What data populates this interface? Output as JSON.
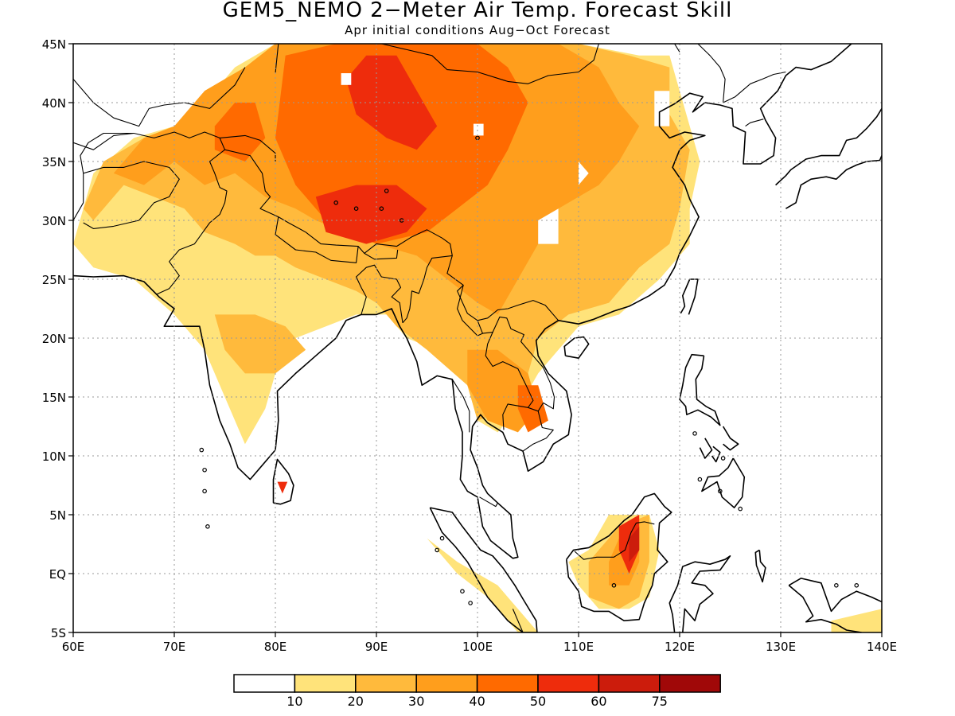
{
  "title": "GEM5_NEMO 2−Meter Air Temp. Forecast Skill",
  "subtitle": "Apr initial conditions  Aug−Oct Forecast",
  "map": {
    "lon_range": [
      60,
      140
    ],
    "lat_range": [
      -5,
      45
    ],
    "lon_ticks": [
      {
        "value": 60,
        "label": "60E"
      },
      {
        "value": 70,
        "label": "70E"
      },
      {
        "value": 80,
        "label": "80E"
      },
      {
        "value": 90,
        "label": "90E"
      },
      {
        "value": 100,
        "label": "100E"
      },
      {
        "value": 110,
        "label": "110E"
      },
      {
        "value": 120,
        "label": "120E"
      },
      {
        "value": 130,
        "label": "130E"
      },
      {
        "value": 140,
        "label": "140E"
      }
    ],
    "lat_ticks": [
      {
        "value": 45,
        "label": "45N"
      },
      {
        "value": 40,
        "label": "40N"
      },
      {
        "value": 35,
        "label": "35N"
      },
      {
        "value": 30,
        "label": "30N"
      },
      {
        "value": 25,
        "label": "25N"
      },
      {
        "value": 20,
        "label": "20N"
      },
      {
        "value": 15,
        "label": "15N"
      },
      {
        "value": 10,
        "label": "10N"
      },
      {
        "value": 5,
        "label": "5N"
      },
      {
        "value": 0,
        "label": "EQ"
      },
      {
        "value": -5,
        "label": "5S"
      }
    ],
    "grid": "dotted",
    "skill_regions": [
      {
        "level": 10,
        "points": [
          [
            60,
            28
          ],
          [
            62,
            34
          ],
          [
            66,
            37
          ],
          [
            70,
            38
          ],
          [
            73,
            40
          ],
          [
            76,
            43
          ],
          [
            80,
            45
          ],
          [
            98,
            45
          ],
          [
            110,
            45
          ],
          [
            116,
            44
          ],
          [
            119,
            44
          ],
          [
            120,
            41
          ],
          [
            121,
            38
          ],
          [
            122,
            35
          ],
          [
            121,
            31
          ],
          [
            121,
            28
          ],
          [
            118,
            25
          ],
          [
            114,
            22
          ],
          [
            110,
            21
          ],
          [
            108,
            19
          ],
          [
            106,
            17
          ],
          [
            104,
            14
          ],
          [
            102,
            12
          ],
          [
            100,
            13
          ],
          [
            99,
            16
          ],
          [
            96,
            19
          ],
          [
            93,
            20
          ],
          [
            91,
            22
          ],
          [
            88,
            22
          ],
          [
            85,
            21
          ],
          [
            82,
            20
          ],
          [
            80,
            17
          ],
          [
            79,
            14
          ],
          [
            77,
            11
          ],
          [
            75,
            15
          ],
          [
            73,
            19
          ],
          [
            70,
            22
          ],
          [
            66,
            25
          ],
          [
            62,
            26
          ]
        ]
      },
      {
        "level": 10,
        "points": [
          [
            113,
            5
          ],
          [
            117,
            5
          ],
          [
            118,
            2
          ],
          [
            117,
            -2
          ],
          [
            115,
            -3
          ],
          [
            112,
            -3
          ],
          [
            110,
            -1
          ],
          [
            109,
            1
          ],
          [
            111,
            2
          ]
        ]
      },
      {
        "level": 10,
        "points": [
          [
            95,
            3
          ],
          [
            98,
            1
          ],
          [
            102,
            -1
          ],
          [
            104,
            -3
          ],
          [
            106,
            -5
          ],
          [
            104,
            -5
          ],
          [
            101,
            -2
          ],
          [
            98,
            0
          ]
        ]
      },
      {
        "level": 10,
        "points": [
          [
            135,
            -4
          ],
          [
            140,
            -3
          ],
          [
            140,
            -5
          ],
          [
            135,
            -5
          ]
        ]
      },
      {
        "level": 20,
        "points": [
          [
            61,
            31
          ],
          [
            63,
            35
          ],
          [
            67,
            37
          ],
          [
            71,
            38
          ],
          [
            73,
            41
          ],
          [
            77,
            43
          ],
          [
            80,
            45
          ],
          [
            110,
            45
          ],
          [
            115,
            44
          ],
          [
            119,
            43
          ],
          [
            119,
            39
          ],
          [
            121,
            36
          ],
          [
            120,
            31
          ],
          [
            119,
            28
          ],
          [
            116,
            26
          ],
          [
            113,
            23
          ],
          [
            109,
            22
          ],
          [
            106,
            20
          ],
          [
            105,
            17
          ],
          [
            103,
            14
          ],
          [
            100,
            13
          ],
          [
            99,
            16
          ],
          [
            95,
            19
          ],
          [
            92,
            21
          ],
          [
            90,
            23
          ],
          [
            88,
            24
          ],
          [
            85,
            25
          ],
          [
            82,
            26
          ],
          [
            80,
            27
          ],
          [
            78,
            27
          ],
          [
            76,
            28
          ],
          [
            73,
            29
          ],
          [
            71,
            31
          ],
          [
            68,
            32
          ],
          [
            65,
            33
          ],
          [
            62,
            30
          ]
        ]
      },
      {
        "level": 20,
        "points": [
          [
            74,
            22
          ],
          [
            78,
            22
          ],
          [
            81,
            21
          ],
          [
            83,
            19
          ],
          [
            80,
            17
          ],
          [
            77,
            17
          ],
          [
            75,
            19
          ]
        ]
      },
      {
        "level": 20,
        "points": [
          [
            114,
            4
          ],
          [
            117,
            5
          ],
          [
            117,
            1
          ],
          [
            116,
            -2
          ],
          [
            114,
            -3
          ],
          [
            111,
            -2
          ],
          [
            111,
            1
          ]
        ]
      },
      {
        "level": 30,
        "points": [
          [
            64,
            34
          ],
          [
            67,
            37
          ],
          [
            70,
            38
          ],
          [
            73,
            41
          ],
          [
            77,
            43
          ],
          [
            80,
            45
          ],
          [
            108,
            45
          ],
          [
            112,
            43
          ],
          [
            114,
            40
          ],
          [
            116,
            38
          ],
          [
            114,
            35
          ],
          [
            112,
            33
          ],
          [
            108,
            31
          ],
          [
            106,
            28
          ],
          [
            104,
            25
          ],
          [
            102,
            22
          ],
          [
            100,
            23
          ],
          [
            97,
            25
          ],
          [
            94,
            27
          ],
          [
            90,
            28
          ],
          [
            87,
            29
          ],
          [
            84,
            30
          ],
          [
            82,
            31
          ],
          [
            79,
            32
          ],
          [
            76,
            34
          ],
          [
            73,
            33
          ],
          [
            70,
            35
          ],
          [
            67,
            33
          ]
        ]
      },
      {
        "level": 30,
        "points": [
          [
            99,
            19
          ],
          [
            102,
            19
          ],
          [
            105,
            17
          ],
          [
            106,
            14
          ],
          [
            104,
            12
          ],
          [
            101,
            13
          ],
          [
            99,
            16
          ]
        ]
      },
      {
        "level": 30,
        "points": [
          [
            114,
            3
          ],
          [
            116,
            4
          ],
          [
            116,
            1
          ],
          [
            115,
            -1
          ],
          [
            113,
            -1
          ],
          [
            113,
            1
          ]
        ]
      },
      {
        "level": 40,
        "points": [
          [
            81,
            44
          ],
          [
            86,
            45
          ],
          [
            100,
            45
          ],
          [
            103,
            43
          ],
          [
            105,
            40
          ],
          [
            103,
            36
          ],
          [
            101,
            33
          ],
          [
            98,
            31
          ],
          [
            95,
            29
          ],
          [
            90,
            28
          ],
          [
            85,
            30
          ],
          [
            82,
            33
          ],
          [
            80,
            37
          ]
        ]
      },
      {
        "level": 40,
        "points": [
          [
            74,
            38
          ],
          [
            76,
            40
          ],
          [
            78,
            40
          ],
          [
            79,
            37
          ],
          [
            77,
            35
          ],
          [
            74,
            36
          ]
        ]
      },
      {
        "level": 40,
        "points": [
          [
            104,
            16
          ],
          [
            106,
            16
          ],
          [
            107,
            13
          ],
          [
            105,
            12
          ],
          [
            104,
            14
          ]
        ]
      },
      {
        "level": 50,
        "points": [
          [
            87,
            42
          ],
          [
            89,
            44
          ],
          [
            92,
            44
          ],
          [
            94,
            41
          ],
          [
            96,
            38
          ],
          [
            94,
            36
          ],
          [
            91,
            37
          ],
          [
            88,
            39
          ]
        ]
      },
      {
        "level": 50,
        "points": [
          [
            84,
            32
          ],
          [
            88,
            33
          ],
          [
            92,
            33
          ],
          [
            95,
            31
          ],
          [
            93,
            29
          ],
          [
            89,
            28
          ],
          [
            85,
            29
          ]
        ]
      },
      {
        "level": 50,
        "points": [
          [
            114,
            4
          ],
          [
            116,
            5
          ],
          [
            116,
            2
          ],
          [
            115,
            0
          ],
          [
            114,
            2
          ]
        ]
      },
      {
        "level": 50,
        "points": [
          [
            80.2,
            7.8
          ],
          [
            81.2,
            7.8
          ],
          [
            80.7,
            6.8
          ]
        ]
      },
      {
        "level": 60,
        "points": [
          [
            115,
            3
          ],
          [
            116,
            4
          ],
          [
            116,
            2
          ],
          [
            115,
            1
          ]
        ]
      }
    ],
    "blank_patches": [
      {
        "points": [
          [
            86.5,
            42.5
          ],
          [
            87.5,
            42.5
          ],
          [
            87.5,
            41.5
          ],
          [
            86.5,
            41.5
          ]
        ]
      },
      {
        "points": [
          [
            99.6,
            38.2
          ],
          [
            100.6,
            38.2
          ],
          [
            100.6,
            37.2
          ],
          [
            99.6,
            37.2
          ]
        ]
      },
      {
        "points": [
          [
            117.5,
            41
          ],
          [
            119,
            41
          ],
          [
            119,
            38
          ],
          [
            117.5,
            38
          ]
        ]
      },
      {
        "points": [
          [
            106,
            30
          ],
          [
            108,
            31
          ],
          [
            108,
            28
          ],
          [
            106,
            28
          ]
        ]
      },
      {
        "points": [
          [
            110,
            35
          ],
          [
            111,
            34
          ],
          [
            110,
            33
          ]
        ]
      }
    ]
  },
  "colorbar": {
    "colors": [
      "#ffffff",
      "#ffe37a",
      "#ffba3c",
      "#ff9e1c",
      "#ff6a00",
      "#ee2c0c",
      "#cc1c0c",
      "#a00808"
    ],
    "labels": [
      "10",
      "20",
      "30",
      "40",
      "50",
      "60",
      "75"
    ]
  }
}
